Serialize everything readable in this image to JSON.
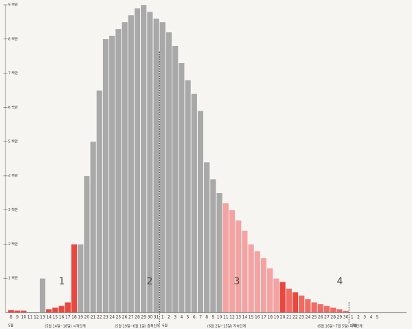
{
  "chart_data": {
    "type": "bar",
    "categories": [
      "8",
      "9",
      "10",
      "11",
      "12",
      "13",
      "14",
      "15",
      "16",
      "17",
      "18",
      "19",
      "20",
      "21",
      "22",
      "23",
      "24",
      "25",
      "26",
      "27",
      "28",
      "29",
      "30",
      "31",
      "1",
      "2",
      "3",
      "4",
      "5",
      "6",
      "7",
      "8",
      "9",
      "10",
      "11",
      "12",
      "13",
      "14",
      "15",
      "16",
      "17",
      "18",
      "19",
      "20",
      "21",
      "22",
      "23",
      "24",
      "25",
      "26",
      "27",
      "28",
      "29",
      "30",
      "1",
      "2",
      "3",
      "4",
      "5"
    ],
    "values": [
      0.08,
      0.06,
      0.06,
      0.02,
      0.02,
      1.0,
      0.1,
      0.15,
      0.2,
      0.3,
      2.0,
      2.0,
      4.0,
      5.0,
      6.5,
      8.0,
      8.1,
      8.3,
      8.5,
      8.7,
      8.9,
      9.0,
      8.8,
      8.6,
      8.5,
      8.2,
      7.8,
      7.3,
      6.8,
      6.4,
      5.9,
      4.4,
      3.9,
      3.5,
      3.2,
      3.0,
      2.7,
      2.4,
      2.0,
      1.8,
      1.6,
      1.3,
      1.0,
      0.9,
      0.7,
      0.6,
      0.5,
      0.4,
      0.3,
      0.25,
      0.2,
      0.15,
      0.1,
      0.05,
      0,
      0,
      0,
      0,
      0
    ],
    "colors": [
      "#e8483f",
      "#e8483f",
      "#e8483f",
      "#a9a9a9",
      "#a9a9a9",
      "#a9a9a9",
      "#e8483f",
      "#e8483f",
      "#e8483f",
      "#e8483f",
      "#e8483f",
      "#a9a9a9",
      "#a9a9a9",
      "#a9a9a9",
      "#a9a9a9",
      "#a9a9a9",
      "#a9a9a9",
      "#a9a9a9",
      "#a9a9a9",
      "#a9a9a9",
      "#a9a9a9",
      "#a9a9a9",
      "#a9a9a9",
      "#a9a9a9",
      "#a9a9a9",
      "#a9a9a9",
      "#a9a9a9",
      "#a9a9a9",
      "#a9a9a9",
      "#a9a9a9",
      "#a9a9a9",
      "#a9a9a9",
      "#a9a9a9",
      "#a9a9a9",
      "#f4a3a3",
      "#f4a3a3",
      "#f4a3a3",
      "#f4a3a3",
      "#f4a3a3",
      "#f4a3a3",
      "#f4a3a3",
      "#f4a3a3",
      "#f4a3a3",
      "#e8483f",
      "#f06b63",
      "#e8483f",
      "#f06b63",
      "#f06b63",
      "#f06b63",
      "#f06b63",
      "#f06b63",
      "#f06b63",
      "#f06b63",
      "#f06b63",
      "#f06b63",
      "#f06b63",
      "#f06b63",
      "#f06b63",
      "#f06b63"
    ],
    "ylim": [
      0,
      9
    ],
    "yticks": [
      {
        "value": 1,
        "label": "1 백만"
      },
      {
        "value": 2,
        "label": "2 백만"
      },
      {
        "value": 3,
        "label": "3 백만"
      },
      {
        "value": 4,
        "label": "4 백만"
      },
      {
        "value": 5,
        "label": "5 백만"
      },
      {
        "value": 6,
        "label": "6 백만"
      },
      {
        "value": 7,
        "label": "7 백만"
      },
      {
        "value": 8,
        "label": "8 백만"
      },
      {
        "value": 9,
        "label": "9 백만"
      }
    ],
    "months": [
      "5월",
      "6월",
      "7월"
    ],
    "phases": [
      "1",
      "2",
      "3",
      "4"
    ],
    "phase_captions": [
      "(5월 14일~18일) 시작단계",
      "(5월 19일~6월 1일) 증폭단계",
      "(6월 2일~15일) 지속단계",
      "(6월 16일~7월 5일) 회복단계"
    ]
  }
}
